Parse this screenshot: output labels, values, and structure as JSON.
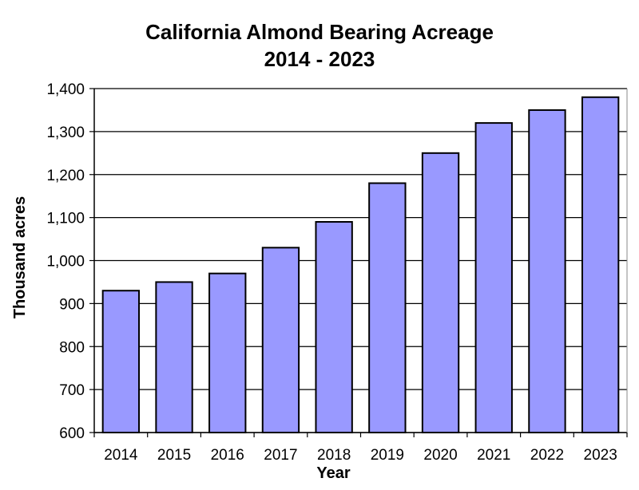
{
  "chart_data": {
    "type": "bar",
    "title_lines": [
      "California Almond Bearing Acreage",
      "2014 - 2023"
    ],
    "xlabel": "Year",
    "ylabel": "Thousand acres",
    "categories": [
      "2014",
      "2015",
      "2016",
      "2017",
      "2018",
      "2019",
      "2020",
      "2021",
      "2022",
      "2023"
    ],
    "values": [
      930,
      950,
      970,
      1030,
      1090,
      1180,
      1250,
      1320,
      1350,
      1380
    ],
    "ylim": [
      600,
      1400
    ],
    "yticks": [
      600,
      700,
      800,
      900,
      1000,
      1100,
      1200,
      1300,
      1400
    ],
    "ytick_labels": [
      "600",
      "700",
      "800",
      "900",
      "1,000",
      "1,100",
      "1,200",
      "1,300",
      "1,400"
    ],
    "grid": true,
    "colors": {
      "bar": "#9999ff",
      "bar_stroke": "#000000",
      "grid": "#000000",
      "background": "#ffffff"
    }
  }
}
